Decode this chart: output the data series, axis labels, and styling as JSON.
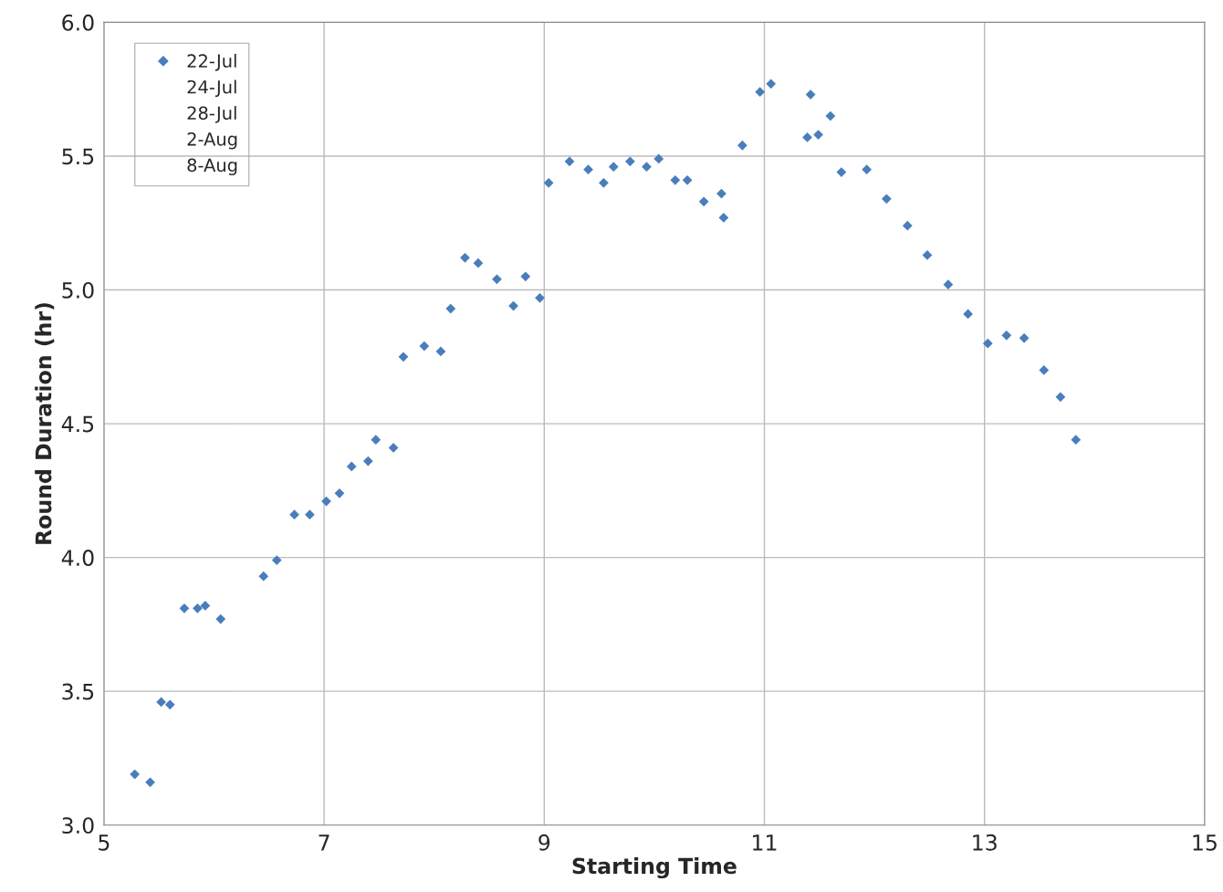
{
  "chart_data": {
    "type": "scatter",
    "xlabel": "Starting Time",
    "ylabel": "Round Duration (hr)",
    "xlim": [
      5,
      15
    ],
    "xticks": [
      5,
      7,
      9,
      11,
      13,
      15
    ],
    "ylim": [
      3,
      6
    ],
    "yticks": [
      {
        "value": 3,
        "label": "3.0"
      },
      {
        "value": 3.5,
        "label": "3.5"
      },
      {
        "value": 4,
        "label": "4.0"
      },
      {
        "value": 4.5,
        "label": "4.5"
      },
      {
        "value": 5,
        "label": "5.0"
      },
      {
        "value": 5.5,
        "label": "5.5"
      },
      {
        "value": 6,
        "label": "6.0"
      }
    ],
    "grid": true,
    "legend": "top left",
    "marker": "diamond",
    "series": [
      {
        "name": "22-Jul",
        "color": "#4a7ebb",
        "x": [
          5.28,
          5.42,
          5.52,
          5.6,
          5.73,
          5.85,
          5.92,
          6.06,
          6.45,
          6.57,
          6.73,
          6.87,
          7.02,
          7.14,
          7.25,
          7.4,
          7.47,
          7.63,
          7.72,
          7.91,
          8.06,
          8.15,
          8.28,
          8.4,
          8.57,
          8.72,
          8.83,
          8.96,
          9.04,
          9.23,
          9.4,
          9.54,
          9.63,
          9.78,
          9.93,
          10.04,
          10.19,
          10.3,
          10.45,
          10.61,
          10.63,
          10.8,
          10.96,
          11.06,
          11.39,
          11.42,
          11.49,
          11.6,
          11.7,
          11.93,
          12.11,
          12.3,
          12.48,
          12.67,
          12.85,
          13.03,
          13.2,
          13.36,
          13.54,
          13.69,
          13.83
        ],
        "values": [
          3.19,
          3.16,
          3.46,
          3.45,
          3.81,
          3.81,
          3.82,
          3.77,
          3.93,
          3.99,
          4.16,
          4.16,
          4.21,
          4.24,
          4.34,
          4.36,
          4.44,
          4.41,
          4.75,
          4.79,
          4.77,
          4.93,
          5.12,
          5.1,
          5.04,
          4.94,
          5.05,
          4.97,
          5.4,
          5.48,
          5.45,
          5.4,
          5.46,
          5.48,
          5.46,
          5.49,
          5.41,
          5.41,
          5.33,
          5.36,
          5.27,
          5.54,
          5.74,
          5.77,
          5.57,
          5.73,
          5.58,
          5.65,
          5.44,
          5.45,
          5.34,
          5.24,
          5.13,
          5.02,
          4.91,
          4.8,
          4.83,
          4.82,
          4.7,
          4.6,
          4.44
        ]
      },
      {
        "name": "24-Jul",
        "marker": "none"
      },
      {
        "name": "28-Jul",
        "marker": "none"
      },
      {
        "name": "2-Aug",
        "marker": "none"
      },
      {
        "name": "8-Aug",
        "marker": "none"
      }
    ]
  }
}
